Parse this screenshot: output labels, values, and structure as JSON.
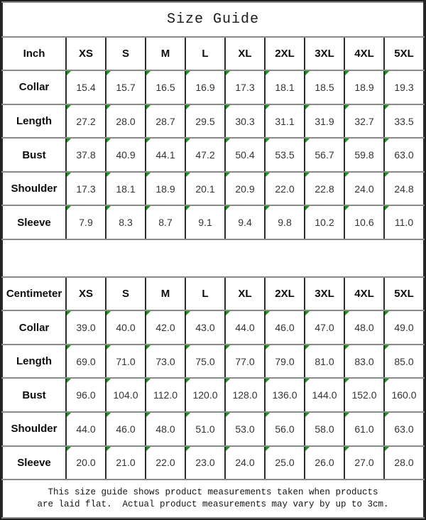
{
  "title": "Size Guide",
  "sizes": [
    "XS",
    "S",
    "M",
    "L",
    "XL",
    "2XL",
    "3XL",
    "4XL",
    "5XL"
  ],
  "tables": [
    {
      "unit_label": "Inch",
      "rows": [
        {
          "label": "Collar",
          "values": [
            "15.4",
            "15.7",
            "16.5",
            "16.9",
            "17.3",
            "18.1",
            "18.5",
            "18.9",
            "19.3"
          ]
        },
        {
          "label": "Length",
          "values": [
            "27.2",
            "28.0",
            "28.7",
            "29.5",
            "30.3",
            "31.1",
            "31.9",
            "32.7",
            "33.5"
          ]
        },
        {
          "label": "Bust",
          "values": [
            "37.8",
            "40.9",
            "44.1",
            "47.2",
            "50.4",
            "53.5",
            "56.7",
            "59.8",
            "63.0"
          ]
        },
        {
          "label": "Shoulder",
          "values": [
            "17.3",
            "18.1",
            "18.9",
            "20.1",
            "20.9",
            "22.0",
            "22.8",
            "24.0",
            "24.8"
          ]
        },
        {
          "label": "Sleeve",
          "values": [
            "7.9",
            "8.3",
            "8.7",
            "9.1",
            "9.4",
            "9.8",
            "10.2",
            "10.6",
            "11.0"
          ]
        }
      ]
    },
    {
      "unit_label": "Centimeter",
      "rows": [
        {
          "label": "Collar",
          "values": [
            "39.0",
            "40.0",
            "42.0",
            "43.0",
            "44.0",
            "46.0",
            "47.0",
            "48.0",
            "49.0"
          ]
        },
        {
          "label": "Length",
          "values": [
            "69.0",
            "71.0",
            "73.0",
            "75.0",
            "77.0",
            "79.0",
            "81.0",
            "83.0",
            "85.0"
          ]
        },
        {
          "label": "Bust",
          "values": [
            "96.0",
            "104.0",
            "112.0",
            "120.0",
            "128.0",
            "136.0",
            "144.0",
            "152.0",
            "160.0"
          ]
        },
        {
          "label": "Shoulder",
          "values": [
            "44.0",
            "46.0",
            "48.0",
            "51.0",
            "53.0",
            "56.0",
            "58.0",
            "61.0",
            "63.0"
          ]
        },
        {
          "label": "Sleeve",
          "values": [
            "20.0",
            "21.0",
            "22.0",
            "23.0",
            "24.0",
            "25.0",
            "26.0",
            "27.0",
            "28.0"
          ]
        }
      ]
    }
  ],
  "footer": {
    "line1": "This size guide shows product measurements taken when products",
    "line2": "are laid flat.  Actual product measurements may vary by up to 3cm."
  },
  "colors": {
    "flag_green": "#129712",
    "grid_horizontal": "#8a8a8a",
    "grid_vertical": "#2d2d2d",
    "border_dark": "#202020",
    "text_dark": "#1f1f1f"
  }
}
